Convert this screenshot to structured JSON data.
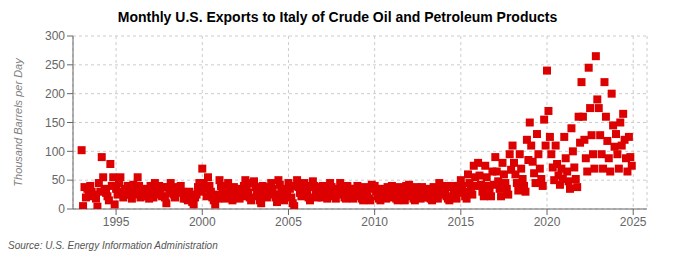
{
  "chart_data": {
    "type": "scatter",
    "title": "Monthly U.S. Exports to Italy of Crude Oil and Petroleum Products",
    "ylabel": "Thousand Barrels per Day",
    "source": "Source: U.S. Energy Information Administration",
    "xlim": [
      1992.5,
      2025.8
    ],
    "ylim": [
      0,
      300
    ],
    "xticks": [
      1995,
      2000,
      2005,
      2010,
      2015,
      2020,
      2025
    ],
    "yticks": [
      0,
      50,
      100,
      150,
      200,
      250,
      300
    ],
    "color": "#DD0000",
    "marker": "square",
    "grid": true,
    "x": [
      1993.0,
      1993.083,
      1993.167,
      1993.25,
      1993.333,
      1993.417,
      1993.5,
      1993.583,
      1993.667,
      1993.75,
      1993.833,
      1993.917,
      1994.0,
      1994.083,
      1994.167,
      1994.25,
      1994.333,
      1994.417,
      1994.5,
      1994.583,
      1994.667,
      1994.75,
      1994.833,
      1994.917,
      1995.0,
      1995.083,
      1995.167,
      1995.25,
      1995.333,
      1995.417,
      1995.5,
      1995.583,
      1995.667,
      1995.75,
      1995.833,
      1995.917,
      1996.0,
      1996.083,
      1996.167,
      1996.25,
      1996.333,
      1996.417,
      1996.5,
      1996.583,
      1996.667,
      1996.75,
      1996.833,
      1996.917,
      1997.0,
      1997.083,
      1997.167,
      1997.25,
      1997.333,
      1997.417,
      1997.5,
      1997.583,
      1997.667,
      1997.75,
      1997.833,
      1997.917,
      1998.0,
      1998.083,
      1998.167,
      1998.25,
      1998.333,
      1998.417,
      1998.5,
      1998.583,
      1998.667,
      1998.75,
      1998.833,
      1998.917,
      1999.0,
      1999.083,
      1999.167,
      1999.25,
      1999.333,
      1999.417,
      1999.5,
      1999.583,
      1999.667,
      1999.75,
      1999.833,
      1999.917,
      2000.0,
      2000.083,
      2000.167,
      2000.25,
      2000.333,
      2000.417,
      2000.5,
      2000.583,
      2000.667,
      2000.75,
      2000.833,
      2000.917,
      2001.0,
      2001.083,
      2001.167,
      2001.25,
      2001.333,
      2001.417,
      2001.5,
      2001.583,
      2001.667,
      2001.75,
      2001.833,
      2001.917,
      2002.0,
      2002.083,
      2002.167,
      2002.25,
      2002.333,
      2002.417,
      2002.5,
      2002.583,
      2002.667,
      2002.75,
      2002.833,
      2002.917,
      2003.0,
      2003.083,
      2003.167,
      2003.25,
      2003.333,
      2003.417,
      2003.5,
      2003.583,
      2003.667,
      2003.75,
      2003.833,
      2003.917,
      2004.0,
      2004.083,
      2004.167,
      2004.25,
      2004.333,
      2004.417,
      2004.5,
      2004.583,
      2004.667,
      2004.75,
      2004.833,
      2004.917,
      2005.0,
      2005.083,
      2005.167,
      2005.25,
      2005.333,
      2005.417,
      2005.5,
      2005.583,
      2005.667,
      2005.75,
      2005.833,
      2005.917,
      2006.0,
      2006.083,
      2006.167,
      2006.25,
      2006.333,
      2006.417,
      2006.5,
      2006.583,
      2006.667,
      2006.75,
      2006.833,
      2006.917,
      2007.0,
      2007.083,
      2007.167,
      2007.25,
      2007.333,
      2007.417,
      2007.5,
      2007.583,
      2007.667,
      2007.75,
      2007.833,
      2007.917,
      2008.0,
      2008.083,
      2008.167,
      2008.25,
      2008.333,
      2008.417,
      2008.5,
      2008.583,
      2008.667,
      2008.75,
      2008.833,
      2008.917,
      2009.0,
      2009.083,
      2009.167,
      2009.25,
      2009.333,
      2009.417,
      2009.5,
      2009.583,
      2009.667,
      2009.75,
      2009.833,
      2009.917,
      2010.0,
      2010.083,
      2010.167,
      2010.25,
      2010.333,
      2010.417,
      2010.5,
      2010.583,
      2010.667,
      2010.75,
      2010.833,
      2010.917,
      2011.0,
      2011.083,
      2011.167,
      2011.25,
      2011.333,
      2011.417,
      2011.5,
      2011.583,
      2011.667,
      2011.75,
      2011.833,
      2011.917,
      2012.0,
      2012.083,
      2012.167,
      2012.25,
      2012.333,
      2012.417,
      2012.5,
      2012.583,
      2012.667,
      2012.75,
      2012.833,
      2012.917,
      2013.0,
      2013.083,
      2013.167,
      2013.25,
      2013.333,
      2013.417,
      2013.5,
      2013.583,
      2013.667,
      2013.75,
      2013.833,
      2013.917,
      2014.0,
      2014.083,
      2014.167,
      2014.25,
      2014.333,
      2014.417,
      2014.5,
      2014.583,
      2014.667,
      2014.75,
      2014.833,
      2014.917,
      2015.0,
      2015.083,
      2015.167,
      2015.25,
      2015.333,
      2015.417,
      2015.5,
      2015.583,
      2015.667,
      2015.75,
      2015.833,
      2015.917,
      2016.0,
      2016.083,
      2016.167,
      2016.25,
      2016.333,
      2016.417,
      2016.5,
      2016.583,
      2016.667,
      2016.75,
      2016.833,
      2016.917,
      2017.0,
      2017.083,
      2017.167,
      2017.25,
      2017.333,
      2017.417,
      2017.5,
      2017.583,
      2017.667,
      2017.75,
      2017.833,
      2017.917,
      2018.0,
      2018.083,
      2018.167,
      2018.25,
      2018.333,
      2018.417,
      2018.5,
      2018.583,
      2018.667,
      2018.75,
      2018.833,
      2018.917,
      2019.0,
      2019.083,
      2019.167,
      2019.25,
      2019.333,
      2019.417,
      2019.5,
      2019.583,
      2019.667,
      2019.75,
      2019.833,
      2019.917,
      2020.0,
      2020.083,
      2020.167,
      2020.25,
      2020.333,
      2020.417,
      2020.5,
      2020.583,
      2020.667,
      2020.75,
      2020.833,
      2020.917,
      2021.0,
      2021.083,
      2021.167,
      2021.25,
      2021.333,
      2021.417,
      2021.5,
      2021.583,
      2021.667,
      2021.75,
      2021.833,
      2021.917,
      2022.0,
      2022.083,
      2022.167,
      2022.25,
      2022.333,
      2022.417,
      2022.5,
      2022.583,
      2022.667,
      2022.75,
      2022.833,
      2022.917,
      2023.0,
      2023.083,
      2023.167,
      2023.25,
      2023.333,
      2023.417,
      2023.5,
      2023.583,
      2023.667,
      2023.75,
      2023.833,
      2023.917,
      2024.0,
      2024.083,
      2024.167,
      2024.25,
      2024.333,
      2024.417,
      2024.5,
      2024.583,
      2024.667,
      2024.75,
      2024.833,
      2024.917
    ],
    "values": [
      102,
      5,
      38,
      20,
      35,
      28,
      40,
      30,
      22,
      25,
      18,
      4,
      45,
      30,
      90,
      55,
      35,
      28,
      22,
      15,
      78,
      40,
      55,
      8,
      35,
      25,
      45,
      55,
      30,
      20,
      35,
      25,
      40,
      30,
      25,
      18,
      42,
      30,
      25,
      55,
      40,
      20,
      30,
      22,
      35,
      25,
      28,
      18,
      40,
      30,
      20,
      45,
      35,
      25,
      40,
      28,
      22,
      38,
      20,
      10,
      38,
      28,
      45,
      35,
      25,
      20,
      38,
      28,
      35,
      40,
      30,
      18,
      25,
      18,
      15,
      30,
      20,
      12,
      8,
      20,
      25,
      38,
      45,
      30,
      70,
      45,
      35,
      22,
      55,
      40,
      30,
      20,
      15,
      8,
      25,
      18,
      50,
      40,
      30,
      22,
      18,
      35,
      45,
      30,
      20,
      15,
      38,
      25,
      35,
      25,
      18,
      30,
      22,
      40,
      50,
      38,
      28,
      20,
      15,
      45,
      48,
      38,
      28,
      22,
      15,
      10,
      40,
      35,
      25,
      20,
      38,
      28,
      45,
      35,
      25,
      20,
      12,
      50,
      42,
      30,
      20,
      15,
      35,
      25,
      45,
      35,
      20,
      10,
      5,
      40,
      50,
      38,
      28,
      22,
      35,
      45,
      40,
      30,
      20,
      15,
      38,
      48,
      40,
      28,
      20,
      38,
      30,
      20,
      40,
      30,
      22,
      18,
      35,
      45,
      38,
      28,
      22,
      18,
      35,
      28,
      45,
      35,
      25,
      20,
      18,
      40,
      35,
      28,
      22,
      18,
      35,
      28,
      40,
      30,
      22,
      18,
      15,
      38,
      30,
      22,
      18,
      15,
      42,
      35,
      40,
      30,
      22,
      18,
      15,
      35,
      28,
      22,
      18,
      38,
      30,
      20,
      40,
      30,
      22,
      18,
      15,
      38,
      30,
      22,
      18,
      15,
      40,
      28,
      42,
      32,
      22,
      18,
      15,
      38,
      30,
      22,
      18,
      38,
      30,
      20,
      35,
      28,
      20,
      18,
      15,
      38,
      30,
      22,
      18,
      45,
      35,
      25,
      40,
      30,
      22,
      18,
      15,
      40,
      38,
      30,
      22,
      18,
      40,
      28,
      50,
      40,
      30,
      22,
      18,
      60,
      45,
      35,
      25,
      75,
      55,
      40,
      80,
      58,
      42,
      30,
      22,
      75,
      55,
      40,
      30,
      22,
      65,
      42,
      90,
      65,
      48,
      35,
      22,
      80,
      60,
      45,
      35,
      25,
      95,
      68,
      110,
      80,
      60,
      45,
      32,
      95,
      70,
      52,
      40,
      30,
      120,
      85,
      150,
      110,
      82,
      62,
      45,
      130,
      95,
      70,
      52,
      40,
      155,
      110,
      240,
      170,
      125,
      95,
      72,
      50,
      110,
      78,
      58,
      42,
      70,
      52,
      125,
      88,
      65,
      48,
      35,
      140,
      100,
      72,
      52,
      38,
      160,
      115,
      220,
      160,
      120,
      88,
      65,
      245,
      175,
      128,
      95,
      70,
      265,
      190,
      175,
      128,
      95,
      70,
      220,
      160,
      118,
      88,
      65,
      200,
      145,
      108,
      130,
      95,
      70,
      150,
      110,
      165,
      120,
      88,
      65,
      125,
      90,
      75
    ]
  }
}
